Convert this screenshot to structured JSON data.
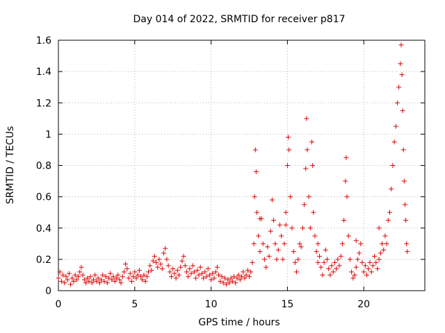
{
  "chart_data": {
    "type": "scatter",
    "title": "Day 014 of 2022, SRMTID for receiver p817",
    "xlabel": "GPS time / hours",
    "ylabel": "SRMTID / TECUs",
    "xlim": [
      0,
      24
    ],
    "ylim": [
      0,
      1.6
    ],
    "xticks": [
      0,
      5,
      10,
      15,
      20
    ],
    "xtick_labels": [
      "0",
      "5",
      "10",
      "15",
      "20"
    ],
    "yticks": [
      0,
      0.2,
      0.4,
      0.6,
      0.8,
      1.0,
      1.2,
      1.4,
      1.6
    ],
    "ytick_labels": [
      "0",
      "0.2",
      "0.4",
      "0.6",
      "0.8",
      "1",
      "1.2",
      "1.4",
      "1.6"
    ],
    "grid": true,
    "marker": "+",
    "colors": {
      "series": "#e00000",
      "axis": "#000000",
      "grid": "#b0b0b0"
    },
    "series": [
      {
        "name": "SRMTID",
        "points": [
          [
            0.0,
            0.08
          ],
          [
            0.1,
            0.12
          ],
          [
            0.2,
            0.06
          ],
          [
            0.3,
            0.1
          ],
          [
            0.4,
            0.05
          ],
          [
            0.5,
            0.09
          ],
          [
            0.6,
            0.07
          ],
          [
            0.7,
            0.11
          ],
          [
            0.8,
            0.04
          ],
          [
            0.9,
            0.08
          ],
          [
            1.0,
            0.06
          ],
          [
            1.1,
            0.1
          ],
          [
            1.2,
            0.07
          ],
          [
            1.3,
            0.09
          ],
          [
            1.4,
            0.12
          ],
          [
            1.5,
            0.15
          ],
          [
            1.6,
            0.1
          ],
          [
            1.7,
            0.07
          ],
          [
            1.8,
            0.05
          ],
          [
            1.9,
            0.08
          ],
          [
            2.0,
            0.06
          ],
          [
            2.1,
            0.09
          ],
          [
            2.2,
            0.05
          ],
          [
            2.3,
            0.07
          ],
          [
            2.4,
            0.1
          ],
          [
            2.5,
            0.06
          ],
          [
            2.6,
            0.08
          ],
          [
            2.7,
            0.05
          ],
          [
            2.8,
            0.07
          ],
          [
            2.9,
            0.1
          ],
          [
            3.0,
            0.06
          ],
          [
            3.1,
            0.09
          ],
          [
            3.2,
            0.05
          ],
          [
            3.3,
            0.08
          ],
          [
            3.4,
            0.11
          ],
          [
            3.5,
            0.07
          ],
          [
            3.6,
            0.09
          ],
          [
            3.7,
            0.06
          ],
          [
            3.8,
            0.08
          ],
          [
            3.9,
            0.1
          ],
          [
            4.0,
            0.07
          ],
          [
            4.1,
            0.05
          ],
          [
            4.2,
            0.09
          ],
          [
            4.3,
            0.12
          ],
          [
            4.4,
            0.17
          ],
          [
            4.5,
            0.14
          ],
          [
            4.6,
            0.08
          ],
          [
            4.7,
            0.11
          ],
          [
            4.8,
            0.06
          ],
          [
            4.9,
            0.09
          ],
          [
            5.0,
            0.12
          ],
          [
            5.1,
            0.08
          ],
          [
            5.2,
            0.1
          ],
          [
            5.3,
            0.13
          ],
          [
            5.4,
            0.09
          ],
          [
            5.5,
            0.07
          ],
          [
            5.6,
            0.1
          ],
          [
            5.7,
            0.06
          ],
          [
            5.8,
            0.09
          ],
          [
            5.9,
            0.12
          ],
          [
            6.0,
            0.16
          ],
          [
            6.1,
            0.13
          ],
          [
            6.2,
            0.19
          ],
          [
            6.3,
            0.22
          ],
          [
            6.4,
            0.18
          ],
          [
            6.5,
            0.15
          ],
          [
            6.6,
            0.2
          ],
          [
            6.7,
            0.17
          ],
          [
            6.8,
            0.14
          ],
          [
            6.9,
            0.24
          ],
          [
            7.0,
            0.27
          ],
          [
            7.1,
            0.2
          ],
          [
            7.2,
            0.16
          ],
          [
            7.3,
            0.12
          ],
          [
            7.4,
            0.09
          ],
          [
            7.5,
            0.14
          ],
          [
            7.6,
            0.11
          ],
          [
            7.7,
            0.08
          ],
          [
            7.8,
            0.13
          ],
          [
            7.9,
            0.1
          ],
          [
            8.0,
            0.15
          ],
          [
            8.1,
            0.19
          ],
          [
            8.2,
            0.22
          ],
          [
            8.3,
            0.16
          ],
          [
            8.4,
            0.12
          ],
          [
            8.5,
            0.09
          ],
          [
            8.6,
            0.14
          ],
          [
            8.7,
            0.11
          ],
          [
            8.8,
            0.16
          ],
          [
            8.9,
            0.12
          ],
          [
            9.0,
            0.08
          ],
          [
            9.1,
            0.13
          ],
          [
            9.2,
            0.1
          ],
          [
            9.3,
            0.15
          ],
          [
            9.4,
            0.11
          ],
          [
            9.5,
            0.08
          ],
          [
            9.6,
            0.12
          ],
          [
            9.7,
            0.09
          ],
          [
            9.8,
            0.14
          ],
          [
            9.9,
            0.1
          ],
          [
            10.0,
            0.07
          ],
          [
            10.1,
            0.11
          ],
          [
            10.2,
            0.08
          ],
          [
            10.3,
            0.12
          ],
          [
            10.4,
            0.15
          ],
          [
            10.5,
            0.1
          ],
          [
            10.6,
            0.06
          ],
          [
            10.7,
            0.09
          ],
          [
            10.8,
            0.05
          ],
          [
            10.9,
            0.08
          ],
          [
            11.0,
            0.04
          ],
          [
            11.1,
            0.07
          ],
          [
            11.2,
            0.05
          ],
          [
            11.3,
            0.08
          ],
          [
            11.4,
            0.06
          ],
          [
            11.5,
            0.09
          ],
          [
            11.6,
            0.05
          ],
          [
            11.7,
            0.08
          ],
          [
            11.8,
            0.1
          ],
          [
            11.9,
            0.07
          ],
          [
            12.0,
            0.09
          ],
          [
            12.1,
            0.12
          ],
          [
            12.2,
            0.08
          ],
          [
            12.3,
            0.1
          ],
          [
            12.4,
            0.13
          ],
          [
            12.5,
            0.09
          ],
          [
            12.6,
            0.12
          ],
          [
            12.7,
            0.18
          ],
          [
            12.8,
            0.3
          ],
          [
            12.85,
            0.6
          ],
          [
            12.9,
            0.9
          ],
          [
            12.95,
            0.76
          ],
          [
            13.0,
            0.5
          ],
          [
            13.1,
            0.35
          ],
          [
            13.2,
            0.25
          ],
          [
            13.3,
            0.46
          ],
          [
            13.4,
            0.3
          ],
          [
            13.5,
            0.2
          ],
          [
            13.6,
            0.15
          ],
          [
            13.7,
            0.28
          ],
          [
            13.8,
            0.22
          ],
          [
            13.9,
            0.38
          ],
          [
            14.0,
            0.58
          ],
          [
            14.1,
            0.45
          ],
          [
            14.2,
            0.3
          ],
          [
            14.3,
            0.2
          ],
          [
            14.4,
            0.26
          ],
          [
            14.5,
            0.42
          ],
          [
            14.6,
            0.35
          ],
          [
            14.7,
            0.2
          ],
          [
            14.8,
            0.3
          ],
          [
            14.9,
            0.5
          ],
          [
            15.0,
            0.8
          ],
          [
            15.05,
            0.98
          ],
          [
            15.1,
            0.9
          ],
          [
            15.2,
            0.6
          ],
          [
            15.3,
            0.4
          ],
          [
            15.4,
            0.25
          ],
          [
            15.5,
            0.18
          ],
          [
            15.6,
            0.12
          ],
          [
            15.7,
            0.2
          ],
          [
            15.8,
            0.3
          ],
          [
            15.9,
            0.28
          ],
          [
            16.0,
            0.4
          ],
          [
            16.1,
            0.55
          ],
          [
            16.2,
            0.78
          ],
          [
            16.25,
            1.1
          ],
          [
            16.3,
            0.9
          ],
          [
            16.4,
            0.6
          ],
          [
            16.5,
            0.4
          ],
          [
            16.6,
            0.95
          ],
          [
            16.65,
            0.8
          ],
          [
            16.7,
            0.5
          ],
          [
            16.8,
            0.35
          ],
          [
            16.9,
            0.25
          ],
          [
            17.0,
            0.18
          ],
          [
            17.1,
            0.22
          ],
          [
            17.2,
            0.15
          ],
          [
            17.3,
            0.1
          ],
          [
            17.4,
            0.18
          ],
          [
            17.5,
            0.26
          ],
          [
            17.6,
            0.2
          ],
          [
            17.7,
            0.14
          ],
          [
            17.8,
            0.1
          ],
          [
            17.9,
            0.16
          ],
          [
            18.0,
            0.12
          ],
          [
            18.1,
            0.18
          ],
          [
            18.2,
            0.14
          ],
          [
            18.3,
            0.2
          ],
          [
            18.4,
            0.16
          ],
          [
            18.5,
            0.22
          ],
          [
            18.6,
            0.3
          ],
          [
            18.7,
            0.45
          ],
          [
            18.8,
            0.7
          ],
          [
            18.85,
            0.85
          ],
          [
            18.9,
            0.6
          ],
          [
            19.0,
            0.35
          ],
          [
            19.1,
            0.2
          ],
          [
            19.2,
            0.12
          ],
          [
            19.3,
            0.08
          ],
          [
            19.4,
            0.1
          ],
          [
            19.5,
            0.15
          ],
          [
            19.6,
            0.2
          ],
          [
            19.7,
            0.24
          ],
          [
            19.8,
            0.3
          ],
          [
            19.9,
            0.18
          ],
          [
            20.0,
            0.12
          ],
          [
            20.1,
            0.16
          ],
          [
            20.2,
            0.1
          ],
          [
            20.3,
            0.14
          ],
          [
            20.4,
            0.18
          ],
          [
            20.5,
            0.12
          ],
          [
            20.6,
            0.16
          ],
          [
            20.7,
            0.22
          ],
          [
            20.8,
            0.18
          ],
          [
            20.9,
            0.14
          ],
          [
            21.0,
            0.2
          ],
          [
            21.1,
            0.24
          ],
          [
            21.2,
            0.3
          ],
          [
            21.3,
            0.26
          ],
          [
            21.4,
            0.35
          ],
          [
            21.5,
            0.3
          ],
          [
            21.6,
            0.45
          ],
          [
            21.7,
            0.5
          ],
          [
            21.8,
            0.65
          ],
          [
            21.9,
            0.8
          ],
          [
            22.0,
            0.95
          ],
          [
            22.1,
            1.05
          ],
          [
            22.2,
            1.2
          ],
          [
            22.3,
            1.3
          ],
          [
            22.4,
            1.45
          ],
          [
            22.45,
            1.57
          ],
          [
            22.5,
            1.38
          ],
          [
            22.55,
            1.15
          ],
          [
            22.6,
            0.9
          ],
          [
            22.65,
            0.7
          ],
          [
            22.7,
            0.55
          ],
          [
            22.75,
            0.45
          ],
          [
            22.8,
            0.3
          ],
          [
            22.85,
            0.25
          ],
          [
            13.2,
            0.46
          ],
          [
            14.9,
            0.42
          ],
          [
            17.0,
            0.3
          ],
          [
            19.5,
            0.32
          ],
          [
            21.0,
            0.4
          ]
        ]
      }
    ]
  }
}
